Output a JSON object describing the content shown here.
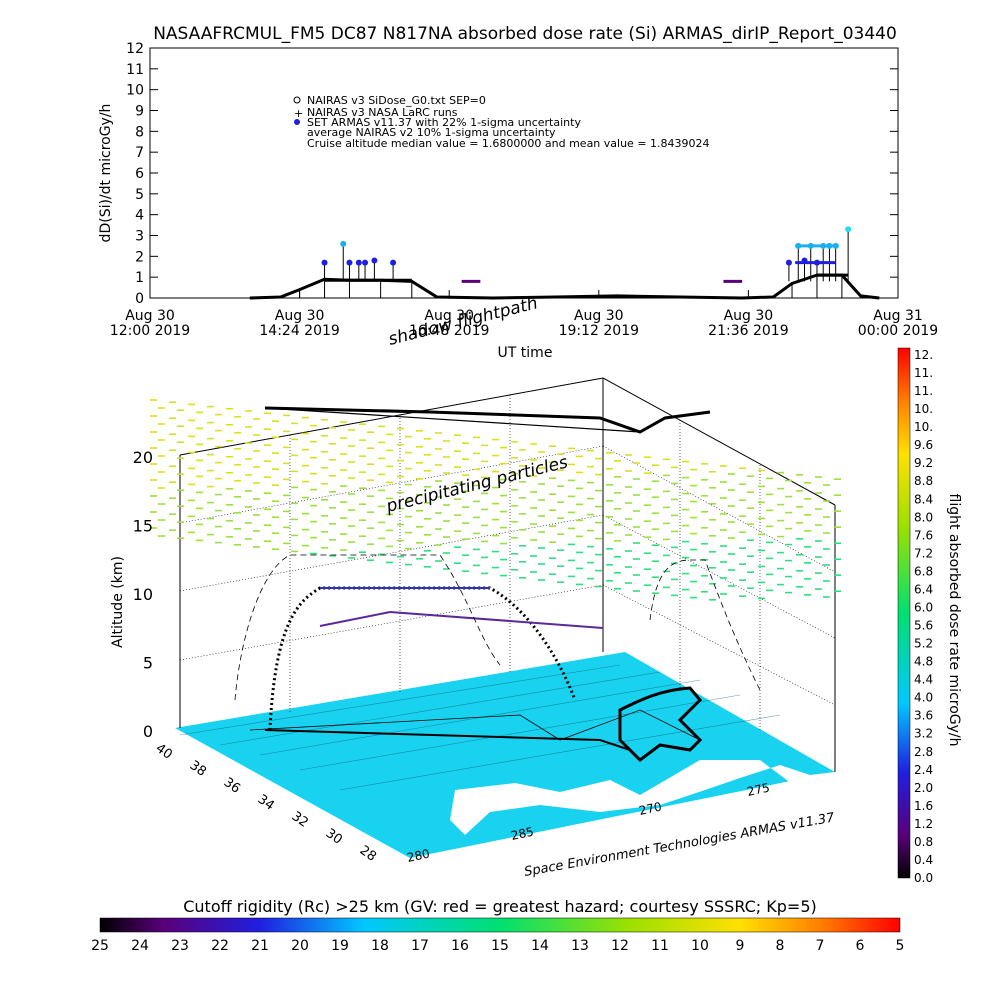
{
  "title": "NASAAFRCMUL_FM5 DC87 N817NA absorbed dose rate (Si) ARMAS_dirIP_Report_03440",
  "top_chart": {
    "ylabel": "dD(Si)/dt microGy/h",
    "xlabel": "UT time",
    "yticks": [
      "0",
      "1",
      "2",
      "3",
      "4",
      "5",
      "6",
      "7",
      "8",
      "9",
      "10",
      "11",
      "12"
    ],
    "xticks": [
      {
        "l1": "Aug 30",
        "l2": "12:00 2019"
      },
      {
        "l1": "Aug 30",
        "l2": "14:24 2019"
      },
      {
        "l1": "Aug 30",
        "l2": "16:48 2019"
      },
      {
        "l1": "Aug 30",
        "l2": "19:12 2019"
      },
      {
        "l1": "Aug 30",
        "l2": "21:36 2019"
      },
      {
        "l1": "Aug 31",
        "l2": "00:00 2019"
      }
    ],
    "legend": [
      "NAIRAS v3 SiDose_G0.txt SEP=0",
      "NAIRAS v3 NASA LaRC runs",
      "SET ARMAS v11.37 with 22% 1-sigma uncertainty",
      "average NAIRAS v2 10% 1-sigma uncertainty",
      "Cruise altitude median value = 1.6800000 and mean value = 1.8439024"
    ]
  },
  "chart_data": {
    "type": "line",
    "x_unit": "hours UT since Aug 30 12:00 2019",
    "xlim": [
      0,
      12
    ],
    "ylim": [
      0,
      12
    ],
    "series": [
      {
        "name": "NAIRAS v3 SiDose_G0.txt SEP=0",
        "x": [
          1.6,
          2.1,
          2.4,
          2.8,
          3.2,
          3.7,
          4.2,
          4.6,
          5.5,
          6.5,
          7.5,
          8.5,
          9.5,
          10.0,
          10.3,
          10.7,
          11.1,
          11.4,
          11.7
        ],
        "y": [
          0,
          0.05,
          0.4,
          0.9,
          0.85,
          0.85,
          0.8,
          0.05,
          0,
          0.05,
          0.1,
          0.05,
          0,
          0.05,
          0.7,
          1.1,
          1.1,
          0.1,
          0
        ]
      },
      {
        "name": "SET ARMAS v11.37 with 22% 1-sigma uncertainty",
        "x": [
          2.8,
          3.1,
          3.2,
          3.35,
          3.45,
          3.6,
          3.9,
          10.25,
          10.4,
          10.5,
          10.6,
          10.7,
          10.8,
          10.9,
          11.0,
          11.2
        ],
        "y": [
          1.7,
          2.6,
          1.7,
          1.7,
          1.7,
          1.8,
          1.7,
          1.7,
          2.5,
          1.8,
          2.5,
          1.7,
          2.5,
          2.5,
          2.5,
          3.3
        ]
      },
      {
        "name": "average NAIRAS v2 10% 1-sigma uncertainty",
        "x": [
          5.0,
          5.3,
          9.2,
          9.5
        ],
        "y": [
          0.8,
          0.8,
          0.8,
          0.8
        ]
      }
    ]
  },
  "map3d": {
    "shadow_label": "shadow flightpath",
    "particles_label": "precipitating particles",
    "ylabel": "Altitude (km)",
    "alt_ticks": [
      "0",
      "5",
      "10",
      "15",
      "20"
    ],
    "lat_ticks": [
      "40",
      "38",
      "36",
      "34",
      "32",
      "30",
      "28"
    ],
    "lon_ticks": [
      "280",
      "285",
      "270",
      "275"
    ],
    "credit": "Space Environment Technologies ARMAS v11.37"
  },
  "colorbar_right": {
    "label": "flight absorbed dose rate microGy/h",
    "ticks": [
      "12.",
      "11.",
      "11.",
      "10.",
      "10.",
      "9.6",
      "9.2",
      "8.8",
      "8.4",
      "8.0",
      "7.6",
      "7.2",
      "6.8",
      "6.4",
      "6.0",
      "5.6",
      "5.2",
      "4.8",
      "4.4",
      "4.0",
      "3.6",
      "3.2",
      "2.8",
      "2.4",
      "2.0",
      "1.6",
      "1.2",
      "0.8",
      "0.4",
      "0.0"
    ]
  },
  "colorbar_bottom": {
    "title": "Cutoff rigidity (Rc) >25 km (GV: red = greatest hazard; courtesy SSSRC; Kp=5)",
    "ticks": [
      "25",
      "24",
      "23",
      "22",
      "21",
      "20",
      "19",
      "18",
      "17",
      "16",
      "15",
      "14",
      "13",
      "12",
      "11",
      "10",
      "9",
      "8",
      "7",
      "6",
      "5"
    ]
  }
}
